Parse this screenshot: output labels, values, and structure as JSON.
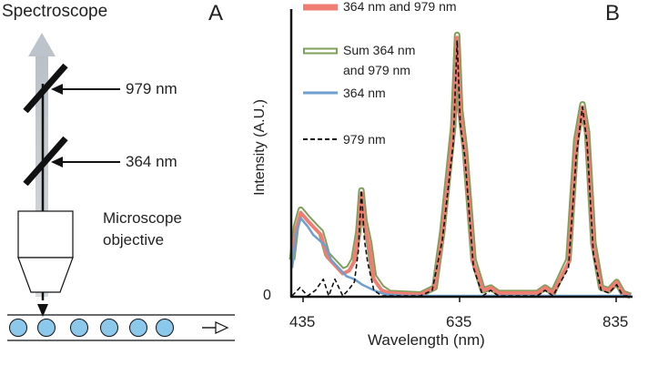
{
  "panel_a": {
    "letter": "A",
    "output_label": "Spectroscope",
    "mirror_top_label": "979 nm",
    "mirror_bottom_label": "364 nm",
    "objective_label_line1": "Microscope",
    "objective_label_line2": "objective"
  },
  "panel_b": {
    "letter": "B",
    "ylabel": "Intensity (A.U.)",
    "xlabel": "Wavelength (nm)",
    "y_zero_label": "0",
    "x_ticks": [
      "435",
      "635",
      "835"
    ],
    "legend": {
      "combined": "364 nm and 979 nm",
      "sum_line1": "Sum 364 nm",
      "sum_line2": "and 979 nm",
      "uv": "364 nm",
      "nir": "979 nm"
    }
  },
  "colors": {
    "combined": "#F07C72",
    "sum": "#7FA05A",
    "uv": "#6E9FCE",
    "nir": "#111111",
    "beam": "#C8CDD2",
    "cell": "#8CC8EC"
  },
  "chart_data": {
    "type": "line",
    "xlabel": "Wavelength (nm)",
    "ylabel": "Intensity (A.U.)",
    "xlim": [
      435,
      870
    ],
    "ylim": [
      0,
      1
    ],
    "series": [
      {
        "name": "979 nm",
        "style": "dashed",
        "points": [
          [
            435,
            0
          ],
          [
            445,
            0.03
          ],
          [
            455,
            0
          ],
          [
            465,
            0.02
          ],
          [
            475,
            0.06
          ],
          [
            482,
            0
          ],
          [
            490,
            0.06
          ],
          [
            500,
            0
          ],
          [
            507,
            0.02
          ],
          [
            515,
            0.05
          ],
          [
            520,
            0.16
          ],
          [
            524,
            0.38
          ],
          [
            528,
            0.2
          ],
          [
            532,
            0.12
          ],
          [
            540,
            0.02
          ],
          [
            550,
            0
          ],
          [
            600,
            0
          ],
          [
            615,
            0.02
          ],
          [
            628,
            0.2
          ],
          [
            642,
            0.55
          ],
          [
            647,
            0.92
          ],
          [
            651,
            0.62
          ],
          [
            657,
            0.5
          ],
          [
            668,
            0.1
          ],
          [
            680,
            0
          ],
          [
            690,
            0.02
          ],
          [
            700,
            0
          ],
          [
            750,
            0
          ],
          [
            760,
            0.02
          ],
          [
            770,
            0
          ],
          [
            790,
            0.1
          ],
          [
            800,
            0.5
          ],
          [
            808,
            0.68
          ],
          [
            814,
            0.55
          ],
          [
            822,
            0.15
          ],
          [
            832,
            0.02
          ],
          [
            842,
            0.01
          ],
          [
            852,
            0.04
          ],
          [
            860,
            0
          ],
          [
            870,
            0
          ]
        ]
      },
      {
        "name": "364 nm",
        "points": [
          [
            435,
            0.1
          ],
          [
            440,
            0.22
          ],
          [
            446,
            0.28
          ],
          [
            455,
            0.25
          ],
          [
            462,
            0.22
          ],
          [
            470,
            0.2
          ],
          [
            478,
            0.18
          ],
          [
            485,
            0.13
          ],
          [
            495,
            0.1
          ],
          [
            505,
            0.07
          ],
          [
            515,
            0.06
          ],
          [
            525,
            0.04
          ],
          [
            540,
            0.02
          ],
          [
            555,
            0.005
          ],
          [
            580,
            0
          ],
          [
            870,
            0
          ]
        ]
      },
      {
        "name": "364 nm and 979 nm",
        "points": [
          [
            435,
            0.12
          ],
          [
            440,
            0.24
          ],
          [
            446,
            0.3
          ],
          [
            455,
            0.27
          ],
          [
            465,
            0.24
          ],
          [
            472,
            0.22
          ],
          [
            480,
            0.14
          ],
          [
            490,
            0.11
          ],
          [
            500,
            0.08
          ],
          [
            508,
            0.09
          ],
          [
            514,
            0.12
          ],
          [
            520,
            0.22
          ],
          [
            524,
            0.37
          ],
          [
            528,
            0.26
          ],
          [
            534,
            0.18
          ],
          [
            540,
            0.06
          ],
          [
            550,
            0.02
          ],
          [
            560,
            0.01
          ],
          [
            600,
            0.005
          ],
          [
            618,
            0.03
          ],
          [
            628,
            0.22
          ],
          [
            642,
            0.6
          ],
          [
            647,
            0.93
          ],
          [
            651,
            0.66
          ],
          [
            657,
            0.52
          ],
          [
            668,
            0.12
          ],
          [
            680,
            0.02
          ],
          [
            690,
            0.03
          ],
          [
            700,
            0.01
          ],
          [
            750,
            0.01
          ],
          [
            760,
            0.03
          ],
          [
            770,
            0.01
          ],
          [
            790,
            0.12
          ],
          [
            800,
            0.55
          ],
          [
            808,
            0.68
          ],
          [
            814,
            0.58
          ],
          [
            822,
            0.18
          ],
          [
            832,
            0.03
          ],
          [
            842,
            0.02
          ],
          [
            852,
            0.05
          ],
          [
            860,
            0.01
          ],
          [
            870,
            0
          ]
        ]
      },
      {
        "name": "Sum 364 nm and 979 nm",
        "points": [
          [
            435,
            0.13
          ],
          [
            440,
            0.25
          ],
          [
            446,
            0.31
          ],
          [
            455,
            0.28
          ],
          [
            465,
            0.25
          ],
          [
            472,
            0.23
          ],
          [
            480,
            0.15
          ],
          [
            490,
            0.12
          ],
          [
            500,
            0.09
          ],
          [
            508,
            0.1
          ],
          [
            514,
            0.13
          ],
          [
            520,
            0.23
          ],
          [
            524,
            0.38
          ],
          [
            528,
            0.27
          ],
          [
            534,
            0.19
          ],
          [
            540,
            0.07
          ],
          [
            550,
            0.03
          ],
          [
            560,
            0.01
          ],
          [
            600,
            0.005
          ],
          [
            618,
            0.03
          ],
          [
            628,
            0.23
          ],
          [
            642,
            0.61
          ],
          [
            647,
            0.94
          ],
          [
            651,
            0.67
          ],
          [
            657,
            0.53
          ],
          [
            668,
            0.13
          ],
          [
            680,
            0.02
          ],
          [
            690,
            0.03
          ],
          [
            700,
            0.01
          ],
          [
            750,
            0.01
          ],
          [
            760,
            0.03
          ],
          [
            770,
            0.01
          ],
          [
            790,
            0.13
          ],
          [
            800,
            0.56
          ],
          [
            808,
            0.69
          ],
          [
            814,
            0.59
          ],
          [
            822,
            0.19
          ],
          [
            832,
            0.03
          ],
          [
            842,
            0.02
          ],
          [
            852,
            0.05
          ],
          [
            860,
            0.01
          ],
          [
            870,
            0
          ]
        ]
      }
    ]
  }
}
